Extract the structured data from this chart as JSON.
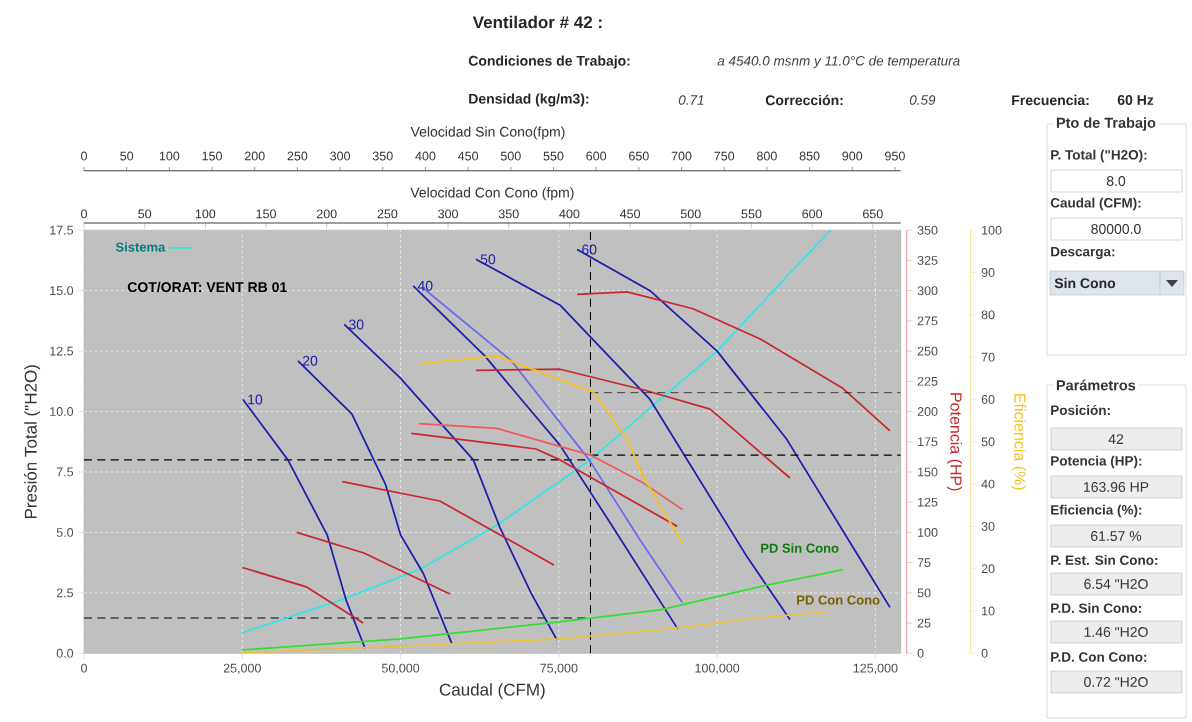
{
  "chart_data": {
    "type": "line",
    "title": "Ventilador # 42 :",
    "xlabel": "Caudal (CFM)",
    "ylabel": "Presión Total (\"H2O)",
    "y2label": "Potencia (HP)",
    "y3label": "Eficiencia (%)",
    "x2label": "Velocidad Con Cono (fpm)",
    "xlim": [
      0,
      129000
    ],
    "ylim": [
      0,
      17.5
    ],
    "y2lim": [
      0,
      350
    ],
    "y3lim": [
      0,
      100
    ],
    "x2lim": [
      0,
      673
    ],
    "xticks": [
      0,
      {
        "value": 25000,
        "label": "25,000"
      },
      {
        "value": 50000,
        "label": "50,000"
      },
      {
        "value": 75000,
        "label": "75,000"
      },
      {
        "value": 100000,
        "label": "100,000"
      },
      {
        "value": 125000,
        "label": "125,000"
      }
    ],
    "yticks": [
      {
        "value": 0,
        "label": "0.0"
      },
      2.5,
      {
        "value": 5,
        "label": "5.0"
      },
      7.5,
      {
        "value": 10,
        "label": "10.0"
      },
      12.5,
      {
        "value": 15,
        "label": "15.0"
      },
      17.5
    ],
    "y2ticks": [
      0,
      25,
      50,
      75,
      100,
      125,
      150,
      175,
      200,
      225,
      250,
      275,
      300,
      325,
      350
    ],
    "y3ticks": [
      0,
      10,
      20,
      30,
      40,
      50,
      60,
      70,
      80,
      90,
      100
    ],
    "x2ticks": [
      0,
      50,
      100,
      150,
      200,
      250,
      300,
      350,
      400,
      450,
      500,
      550,
      600,
      650
    ],
    "grid": true,
    "legend": "top left",
    "marker": "none",
    "line_style": "solid",
    "series": [
      {
        "name": "Sistema",
        "color": "#2de6e6",
        "x": [
          25000,
          41100,
          53200,
          65200,
          80000,
          91000,
          100000,
          108900,
          117900
        ],
        "values": [
          0.85,
          2.25,
          3.5,
          5.3,
          8.0,
          10.5,
          12.5,
          15.0,
          17.5
        ]
      },
      {
        "color": "#1e1eaa",
        "x": [
          25100,
          32200,
          38400,
          41400,
          44400
        ],
        "values": [
          10.5,
          8.0,
          4.9,
          2.2,
          0.2
        ]
      },
      {
        "color": "#1e1eaa",
        "x": [
          33800,
          42300,
          47600,
          50000,
          53600,
          58100
        ],
        "values": [
          12.1,
          9.9,
          7.0,
          4.9,
          3.3,
          0.4
        ]
      },
      {
        "color": "#1e1eaa",
        "x": [
          41100,
          49900,
          61500,
          65700,
          70600,
          74700
        ],
        "values": [
          13.6,
          11.4,
          8.0,
          5.2,
          2.5,
          0.55
        ]
      },
      {
        "color": "#1e1eaa",
        "x": [
          52000,
          63300,
          75200,
          83100,
          93800
        ],
        "values": [
          15.2,
          12.3,
          8.6,
          5.4,
          1.0
        ]
      },
      {
        "color": "#6a6af0",
        "x": [
          53600,
          67500,
          79800,
          87800,
          94500
        ],
        "values": [
          15.1,
          12.1,
          8.0,
          4.7,
          2.1
        ]
      },
      {
        "color": "#1e1eaa",
        "x": [
          61900,
          75200,
          89400,
          104700,
          111500
        ],
        "values": [
          16.3,
          14.4,
          10.5,
          4.0,
          1.4
        ]
      },
      {
        "color": "#1e1eaa",
        "x": [
          77900,
          89400,
          100000,
          111000,
          122600,
          127300
        ],
        "values": [
          16.7,
          15.0,
          12.5,
          8.85,
          3.9,
          1.9
        ]
      },
      {
        "color": "#33dd33",
        "x": [
          25000,
          50000,
          75000,
          91000,
          106800,
          119900
        ],
        "values": [
          0.14,
          0.6,
          1.3,
          1.8,
          2.76,
          3.46
        ]
      },
      {
        "color": "#e8c040",
        "x": [
          25000,
          50000,
          75000,
          91000,
          106800,
          117400
        ],
        "values": [
          0.02,
          0.3,
          0.6,
          0.97,
          1.47,
          1.72
        ]
      },
      {
        "color": "#c8282d",
        "axis": "y2",
        "x": [
          25000,
          35100,
          44100
        ],
        "values": [
          71,
          55,
          25
        ]
      },
      {
        "color": "#c8282d",
        "axis": "y2",
        "x": [
          33600,
          44200,
          57800
        ],
        "values": [
          100,
          83,
          49
        ]
      },
      {
        "color": "#c8282d",
        "axis": "y2",
        "x": [
          40800,
          56200,
          74200
        ],
        "values": [
          142,
          126,
          73
        ]
      },
      {
        "color": "#c8282d",
        "axis": "y2",
        "x": [
          51700,
          71400,
          75200,
          93700
        ],
        "values": [
          182,
          169,
          160,
          105
        ]
      },
      {
        "color": "#ec5a5a",
        "axis": "y2",
        "x": [
          52900,
          65200,
          80000,
          88300,
          94500
        ],
        "values": [
          190,
          186,
          164,
          141,
          119
        ]
      },
      {
        "color": "#c8282d",
        "axis": "y2",
        "x": [
          61900,
          75200,
          88300,
          98900,
          111500
        ],
        "values": [
          234,
          235,
          218,
          202,
          145
        ]
      },
      {
        "color": "#c8282d",
        "axis": "y2",
        "x": [
          77900,
          85800,
          96200,
          106800,
          119900,
          127300
        ],
        "values": [
          297,
          299,
          285,
          260,
          219,
          184
        ]
      },
      {
        "color": "#f5c21a",
        "axis": "y3",
        "x": [
          52900,
          65200,
          80400,
          85800,
          88300,
          94500
        ],
        "values": [
          68.4,
          70.3,
          61.8,
          50.6,
          41.8,
          26.1
        ]
      }
    ],
    "ref_lines": [
      {
        "axis": "y",
        "value": 8.0,
        "color": "#000000",
        "line_style": "dashed"
      },
      {
        "axis": "y",
        "value": 1.46,
        "color": "#000000",
        "line_style": "dashed"
      },
      {
        "axis": "x",
        "value": 80000,
        "color": "#000000",
        "line_style": "dashed"
      },
      {
        "axis": "y2",
        "value": 163.96,
        "color": "#000000",
        "line_style": "dashed"
      },
      {
        "axis": "y3",
        "value": 61.57,
        "color": "#000000",
        "line_style": "dashed"
      }
    ],
    "annotations": [
      "Condiciones de Trabajo:",
      "a 4540.0 msnm y 11.0°C de temperatura",
      "Densidad (kg/m3):",
      "0.71",
      "Corrección:",
      "0.59",
      "Frecuencia:",
      "60 Hz",
      "COT/ORAT: VENT RB 01",
      "Pto de Trabajo",
      "P. Total (\"H2O):",
      "8.0",
      "Caudal (CFM):",
      "80000.0",
      "Descarga:",
      "Sin Cono",
      "Parámetros",
      "Posición:",
      "42",
      "Potencia (HP):",
      "163.96 HP",
      "Eficiencia (%):",
      "61.57 %",
      "P. Est. Sin Cono:",
      "6.54 \"H2O",
      "P.D. Sin Cono:",
      "1.46 \"H2O",
      "P.D. Con Cono:",
      "0.72 \"H2O",
      "Velocidad Sin Cono(fpm)",
      "0",
      "50",
      "100",
      "150",
      "200",
      "250",
      "300",
      "350",
      "400",
      "450",
      "500",
      "550",
      "600",
      "650",
      "700",
      "750",
      "800",
      "850",
      "900",
      "950",
      "PD Sin Cono",
      "PD Con Cono",
      {
        "text": "10",
        "x": 25100,
        "y": 10.5
      },
      {
        "text": "20",
        "x": 33800,
        "y": 12.1
      },
      {
        "text": "30",
        "x": 41100,
        "y": 13.6
      },
      {
        "text": "40",
        "x": 52000,
        "y": 15.2
      },
      {
        "text": "50",
        "x": 61900,
        "y": 16.3
      },
      {
        "text": "60",
        "x": 77900,
        "y": 16.7
      }
    ]
  }
}
